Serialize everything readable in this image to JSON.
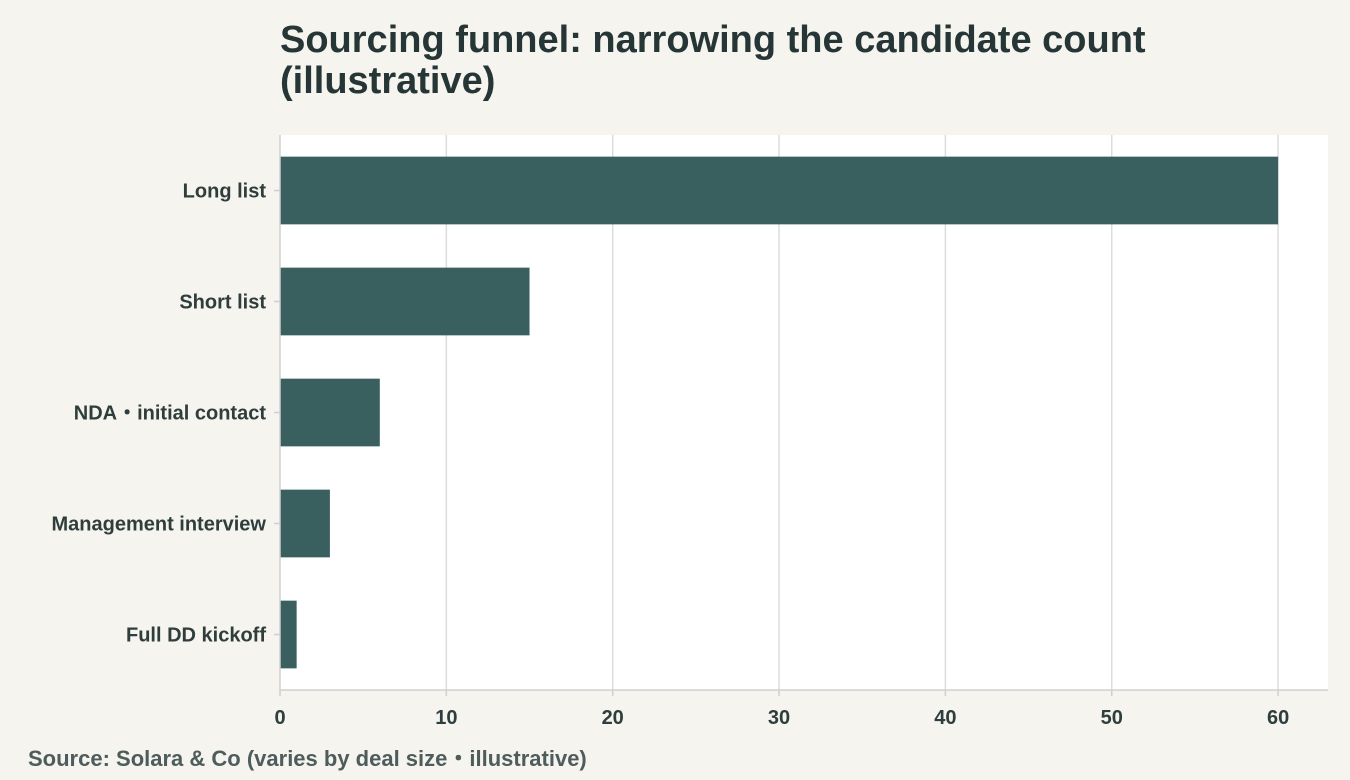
{
  "title": "Sourcing funnel: narrowing the candidate count (illustrative)",
  "source": "Source: Solara & Co (varies by deal size・illustrative)",
  "chart_data": {
    "type": "bar",
    "orientation": "horizontal",
    "categories": [
      "Long list",
      "Short list",
      "NDA・initial contact",
      "Management interview",
      "Full DD kickoff"
    ],
    "values": [
      60,
      15,
      6,
      3,
      1
    ],
    "xlim": [
      0,
      63
    ],
    "xticks": [
      0,
      10,
      20,
      30,
      40,
      50,
      60
    ],
    "xlabel": "",
    "ylabel": "",
    "grid": "vertical",
    "bar_color": "#3a5f5f",
    "background": "#f5f4ef",
    "plot_background": "#ffffff"
  }
}
